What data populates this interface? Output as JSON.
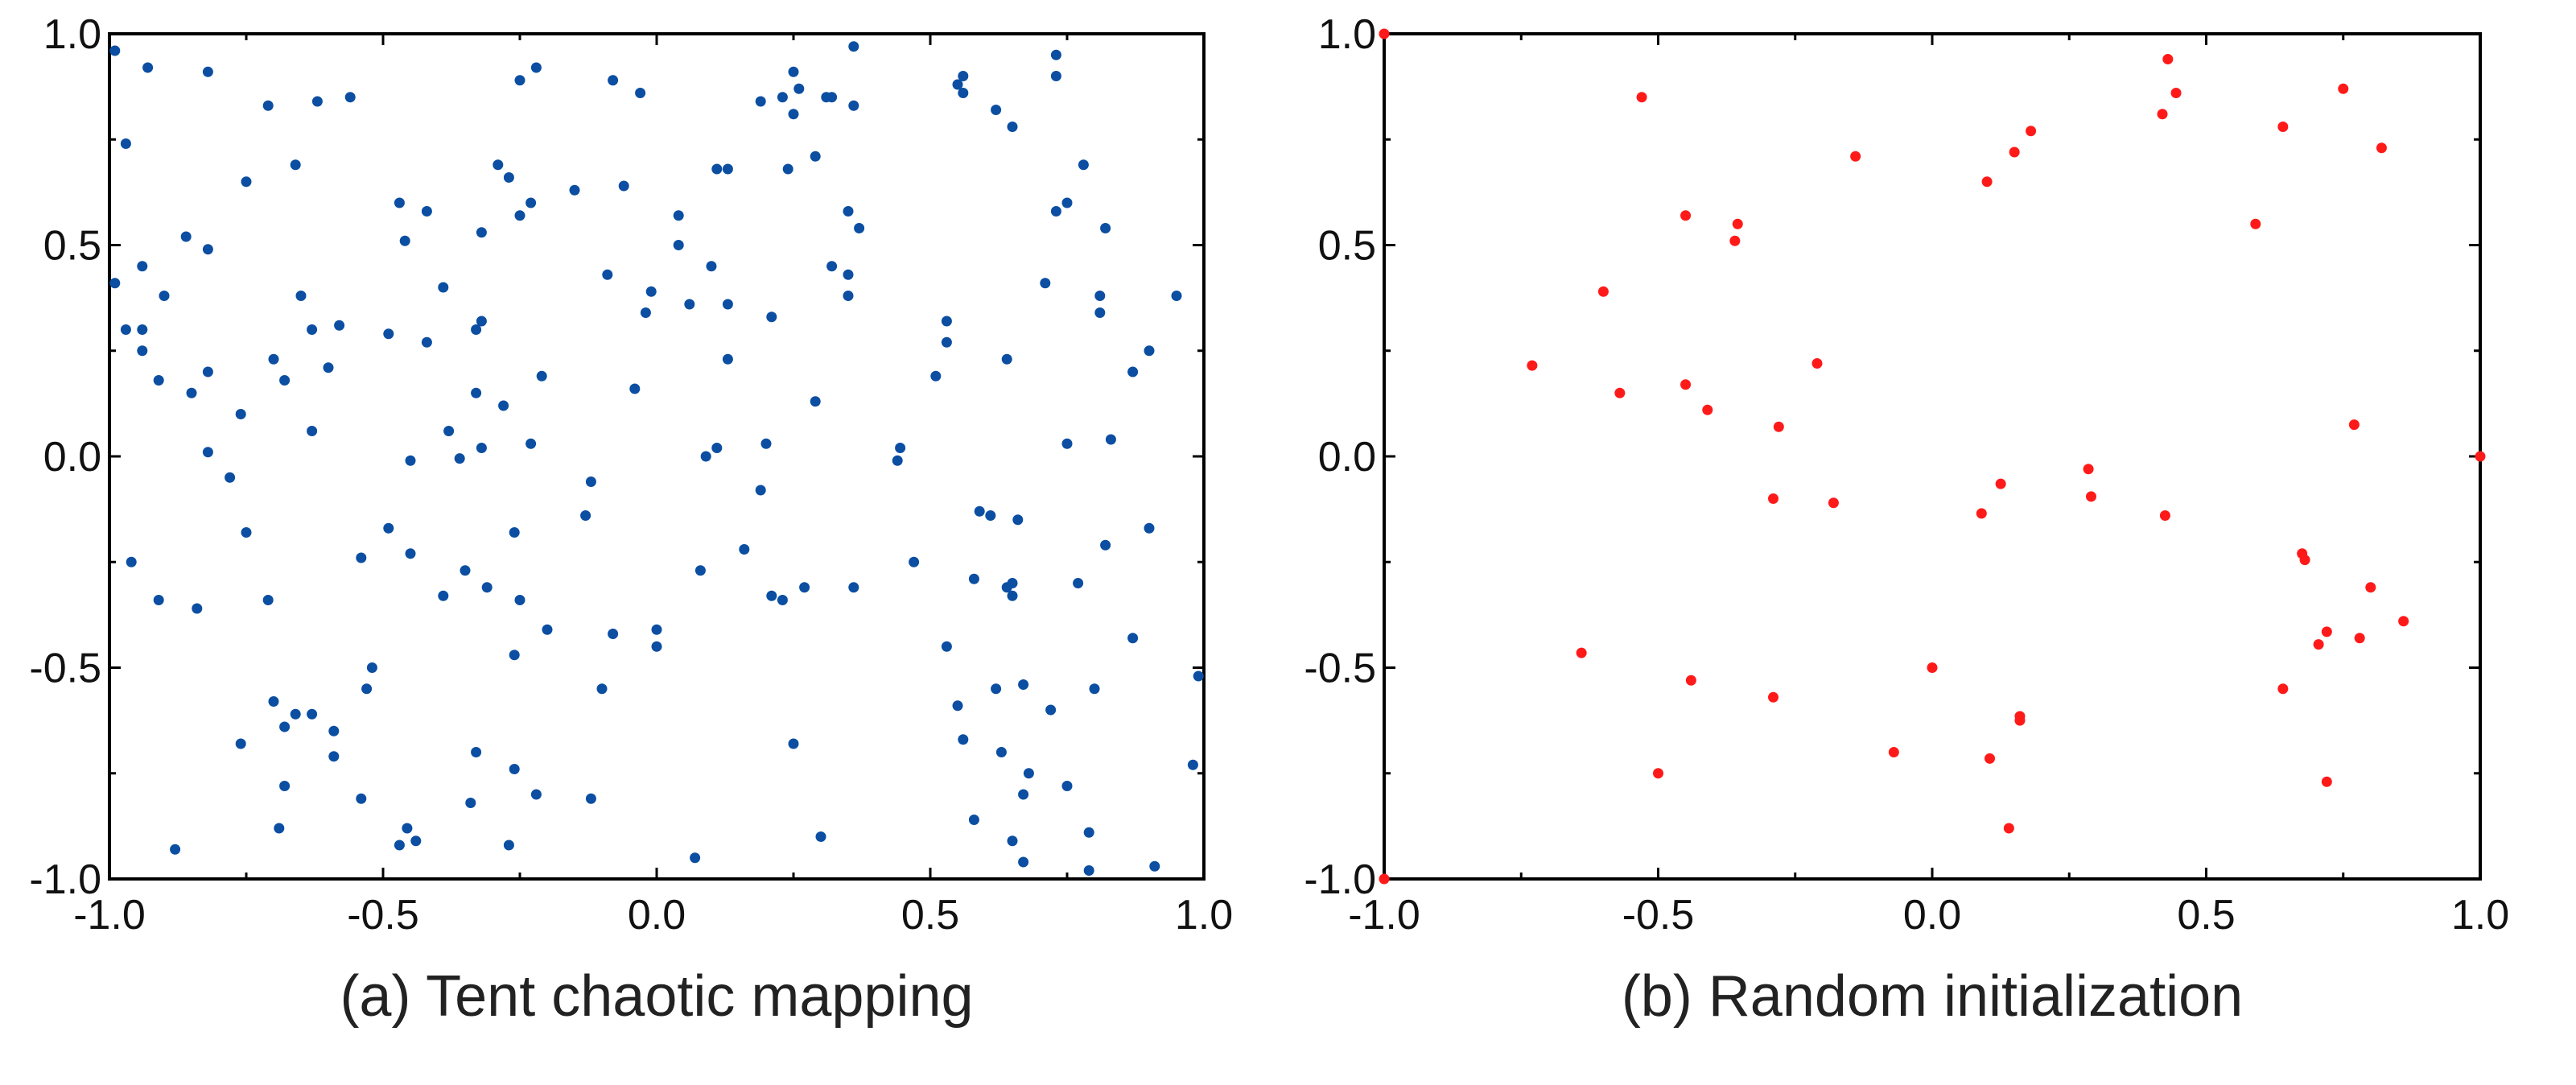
{
  "chart_data": [
    {
      "type": "scatter",
      "title": "(a) Tent chaotic mapping",
      "xlabel": "",
      "ylabel": "",
      "xlim": [
        -1.0,
        1.0
      ],
      "ylim": [
        -1.0,
        1.0
      ],
      "xticks": [
        "-1.0",
        "-0.5",
        "0.0",
        "0.5",
        "1.0"
      ],
      "yticks": [
        "-1.0",
        "-0.5",
        "0.0",
        "0.5",
        "1.0"
      ],
      "grid": false,
      "color": "#0b4ea2",
      "points": [
        [
          -0.99,
          0.96
        ],
        [
          -0.93,
          0.92
        ],
        [
          -0.82,
          0.91
        ],
        [
          -0.97,
          0.74
        ],
        [
          -0.71,
          0.83
        ],
        [
          -0.62,
          0.84
        ],
        [
          -0.56,
          0.85
        ],
        [
          -0.75,
          0.65
        ],
        [
          -0.66,
          0.69
        ],
        [
          -0.86,
          0.52
        ],
        [
          -0.82,
          0.49
        ],
        [
          -0.99,
          0.41
        ],
        [
          -0.94,
          0.45
        ],
        [
          -0.9,
          0.38
        ],
        [
          -0.97,
          0.3
        ],
        [
          -0.94,
          0.3
        ],
        [
          -0.94,
          0.25
        ],
        [
          -0.91,
          0.18
        ],
        [
          -0.82,
          0.2
        ],
        [
          -0.85,
          0.15
        ],
        [
          -0.65,
          0.38
        ],
        [
          -0.63,
          0.3
        ],
        [
          -0.58,
          0.31
        ],
        [
          -0.7,
          0.23
        ],
        [
          -0.68,
          0.18
        ],
        [
          -0.6,
          0.21
        ],
        [
          -0.76,
          0.1
        ],
        [
          -0.63,
          0.06
        ],
        [
          -0.82,
          0.01
        ],
        [
          -0.78,
          -0.05
        ],
        [
          -0.75,
          -0.18
        ],
        [
          -0.96,
          -0.25
        ],
        [
          -0.91,
          -0.34
        ],
        [
          -0.84,
          -0.36
        ],
        [
          -0.71,
          -0.34
        ],
        [
          -0.76,
          -0.68
        ],
        [
          -0.7,
          -0.58
        ],
        [
          -0.66,
          -0.61
        ],
        [
          -0.68,
          -0.64
        ],
        [
          -0.63,
          -0.61
        ],
        [
          -0.59,
          -0.65
        ],
        [
          -0.59,
          -0.71
        ],
        [
          -0.68,
          -0.78
        ],
        [
          -0.69,
          -0.88
        ],
        [
          -0.88,
          -0.93
        ],
        [
          -0.54,
          -0.81
        ],
        [
          -0.47,
          0.6
        ],
        [
          -0.42,
          0.58
        ],
        [
          -0.46,
          0.51
        ],
        [
          -0.49,
          0.29
        ],
        [
          -0.42,
          0.27
        ],
        [
          -0.39,
          0.4
        ],
        [
          -0.32,
          0.53
        ],
        [
          -0.33,
          0.3
        ],
        [
          -0.32,
          0.32
        ],
        [
          -0.33,
          0.15
        ],
        [
          -0.28,
          0.12
        ],
        [
          -0.21,
          0.19
        ],
        [
          -0.38,
          0.06
        ],
        [
          -0.36,
          -0.005
        ],
        [
          -0.32,
          0.02
        ],
        [
          -0.45,
          -0.01
        ],
        [
          -0.23,
          0.03
        ],
        [
          -0.29,
          0.69
        ],
        [
          -0.27,
          0.66
        ],
        [
          -0.23,
          0.6
        ],
        [
          -0.25,
          0.57
        ],
        [
          -0.25,
          0.89
        ],
        [
          -0.22,
          0.92
        ],
        [
          -0.15,
          0.63
        ],
        [
          -0.06,
          0.64
        ],
        [
          -0.08,
          0.89
        ],
        [
          -0.03,
          0.86
        ],
        [
          -0.09,
          0.43
        ],
        [
          -0.01,
          0.39
        ],
        [
          -0.02,
          0.34
        ],
        [
          -0.04,
          0.16
        ],
        [
          0.04,
          0.57
        ],
        [
          0.04,
          0.5
        ],
        [
          0.1,
          0.45
        ],
        [
          0.06,
          0.36
        ],
        [
          0.13,
          0.36
        ],
        [
          0.13,
          0.23
        ],
        [
          0.11,
          0.68
        ],
        [
          0.13,
          0.68
        ],
        [
          0.19,
          0.84
        ],
        [
          0.23,
          0.85
        ],
        [
          0.25,
          0.91
        ],
        [
          0.26,
          0.87
        ],
        [
          0.25,
          0.81
        ],
        [
          0.31,
          0.85
        ],
        [
          0.32,
          0.85
        ],
        [
          0.36,
          0.97
        ],
        [
          0.36,
          0.83
        ],
        [
          0.24,
          0.68
        ],
        [
          0.29,
          0.71
        ],
        [
          0.35,
          0.58
        ],
        [
          0.37,
          0.54
        ],
        [
          0.32,
          0.45
        ],
        [
          0.35,
          0.43
        ],
        [
          0.35,
          0.38
        ],
        [
          0.21,
          0.33
        ],
        [
          0.29,
          0.13
        ],
        [
          0.09,
          0.0
        ],
        [
          0.11,
          0.02
        ],
        [
          0.2,
          0.03
        ],
        [
          0.44,
          -0.01
        ],
        [
          0.445,
          0.02
        ],
        [
          0.51,
          0.19
        ],
        [
          0.53,
          0.27
        ],
        [
          0.53,
          0.32
        ],
        [
          0.55,
          0.88
        ],
        [
          0.56,
          0.9
        ],
        [
          0.56,
          0.86
        ],
        [
          0.62,
          0.82
        ],
        [
          0.65,
          0.78
        ],
        [
          0.73,
          0.95
        ],
        [
          0.73,
          0.9
        ],
        [
          0.78,
          0.69
        ],
        [
          0.73,
          0.58
        ],
        [
          0.75,
          0.6
        ],
        [
          0.82,
          0.54
        ],
        [
          0.71,
          0.41
        ],
        [
          0.81,
          0.38
        ],
        [
          0.81,
          0.34
        ],
        [
          0.95,
          0.38
        ],
        [
          0.64,
          0.23
        ],
        [
          0.9,
          0.25
        ],
        [
          0.87,
          0.2
        ],
        [
          0.75,
          0.03
        ],
        [
          0.83,
          0.04
        ],
        [
          -0.12,
          -0.06
        ],
        [
          -0.13,
          -0.14
        ],
        [
          -0.26,
          -0.18
        ],
        [
          -0.49,
          -0.17
        ],
        [
          -0.54,
          -0.24
        ],
        [
          -0.45,
          -0.23
        ],
        [
          -0.35,
          -0.27
        ],
        [
          -0.31,
          -0.31
        ],
        [
          -0.25,
          -0.34
        ],
        [
          -0.39,
          -0.33
        ],
        [
          -0.2,
          -0.41
        ],
        [
          -0.26,
          -0.47
        ],
        [
          -0.52,
          -0.5
        ],
        [
          -0.53,
          -0.55
        ],
        [
          -0.08,
          -0.42
        ],
        [
          0.0,
          -0.41
        ],
        [
          0.0,
          -0.45
        ],
        [
          -0.1,
          -0.55
        ],
        [
          0.19,
          -0.08
        ],
        [
          0.16,
          -0.22
        ],
        [
          0.08,
          -0.27
        ],
        [
          0.21,
          -0.33
        ],
        [
          0.23,
          -0.34
        ],
        [
          0.27,
          -0.31
        ],
        [
          0.36,
          -0.31
        ],
        [
          0.47,
          -0.25
        ],
        [
          0.59,
          -0.13
        ],
        [
          0.61,
          -0.14
        ],
        [
          0.66,
          -0.15
        ],
        [
          0.58,
          -0.29
        ],
        [
          0.64,
          -0.31
        ],
        [
          0.65,
          -0.3
        ],
        [
          0.65,
          -0.33
        ],
        [
          0.77,
          -0.3
        ],
        [
          0.82,
          -0.21
        ],
        [
          0.9,
          -0.17
        ],
        [
          0.53,
          -0.45
        ],
        [
          0.87,
          -0.43
        ],
        [
          0.99,
          -0.52
        ],
        [
          0.55,
          -0.59
        ],
        [
          0.62,
          -0.55
        ],
        [
          0.67,
          -0.54
        ],
        [
          0.72,
          -0.6
        ],
        [
          0.8,
          -0.55
        ],
        [
          0.56,
          -0.67
        ],
        [
          0.63,
          -0.7
        ],
        [
          0.68,
          -0.75
        ],
        [
          0.75,
          -0.78
        ],
        [
          0.67,
          -0.8
        ],
        [
          0.98,
          -0.73
        ],
        [
          0.58,
          -0.86
        ],
        [
          0.65,
          -0.91
        ],
        [
          0.67,
          -0.96
        ],
        [
          0.79,
          -0.89
        ],
        [
          0.79,
          -0.98
        ],
        [
          0.91,
          -0.97
        ],
        [
          0.3,
          -0.9
        ],
        [
          0.25,
          -0.68
        ],
        [
          0.07,
          -0.95
        ],
        [
          -0.33,
          -0.7
        ],
        [
          -0.34,
          -0.82
        ],
        [
          -0.26,
          -0.74
        ],
        [
          -0.22,
          -0.8
        ],
        [
          -0.12,
          -0.81
        ],
        [
          -0.456,
          -0.88
        ],
        [
          -0.44,
          -0.91
        ],
        [
          -0.47,
          -0.92
        ],
        [
          -0.27,
          -0.92
        ]
      ]
    },
    {
      "type": "scatter",
      "title": "(b) Random initialization",
      "xlabel": "",
      "ylabel": "",
      "xlim": [
        -1.0,
        1.0
      ],
      "ylim": [
        -1.0,
        1.0
      ],
      "xticks": [
        "-1.0",
        "-0.5",
        "0.0",
        "0.5",
        "1.0"
      ],
      "yticks": [
        "-1.0",
        "-0.5",
        "0.0",
        "0.5",
        "1.0"
      ],
      "grid": false,
      "color": "#ff1a1a",
      "points": [
        [
          -1.0,
          1.0
        ],
        [
          -1.0,
          -1.0
        ],
        [
          1.0,
          0.0
        ],
        [
          -0.53,
          0.85
        ],
        [
          0.43,
          0.94
        ],
        [
          0.445,
          0.86
        ],
        [
          0.42,
          0.81
        ],
        [
          0.75,
          0.87
        ],
        [
          0.64,
          0.78
        ],
        [
          0.82,
          0.73
        ],
        [
          0.18,
          0.77
        ],
        [
          0.15,
          0.72
        ],
        [
          0.1,
          0.65
        ],
        [
          -0.14,
          0.71
        ],
        [
          -0.45,
          0.57
        ],
        [
          -0.355,
          0.55
        ],
        [
          -0.36,
          0.51
        ],
        [
          0.59,
          0.55
        ],
        [
          -0.6,
          0.39
        ],
        [
          -0.73,
          0.215
        ],
        [
          -0.57,
          0.15
        ],
        [
          -0.45,
          0.17
        ],
        [
          -0.41,
          0.11
        ],
        [
          -0.21,
          0.22
        ],
        [
          -0.28,
          0.07
        ],
        [
          0.77,
          0.075
        ],
        [
          0.285,
          -0.03
        ],
        [
          0.125,
          -0.065
        ],
        [
          0.29,
          -0.095
        ],
        [
          -0.29,
          -0.1
        ],
        [
          -0.18,
          -0.11
        ],
        [
          0.09,
          -0.135
        ],
        [
          0.425,
          -0.14
        ],
        [
          0.675,
          -0.23
        ],
        [
          0.68,
          -0.245
        ],
        [
          0.8,
          -0.31
        ],
        [
          0.86,
          -0.39
        ],
        [
          0.72,
          -0.415
        ],
        [
          0.705,
          -0.445
        ],
        [
          0.78,
          -0.43
        ],
        [
          -0.64,
          -0.465
        ],
        [
          0.0,
          -0.5
        ],
        [
          -0.44,
          -0.53
        ],
        [
          -0.29,
          -0.57
        ],
        [
          0.64,
          -0.55
        ],
        [
          0.16,
          -0.615
        ],
        [
          0.16,
          -0.625
        ],
        [
          -0.07,
          -0.7
        ],
        [
          0.105,
          -0.715
        ],
        [
          -0.5,
          -0.75
        ],
        [
          0.72,
          -0.77
        ],
        [
          0.14,
          -0.88
        ]
      ]
    }
  ]
}
